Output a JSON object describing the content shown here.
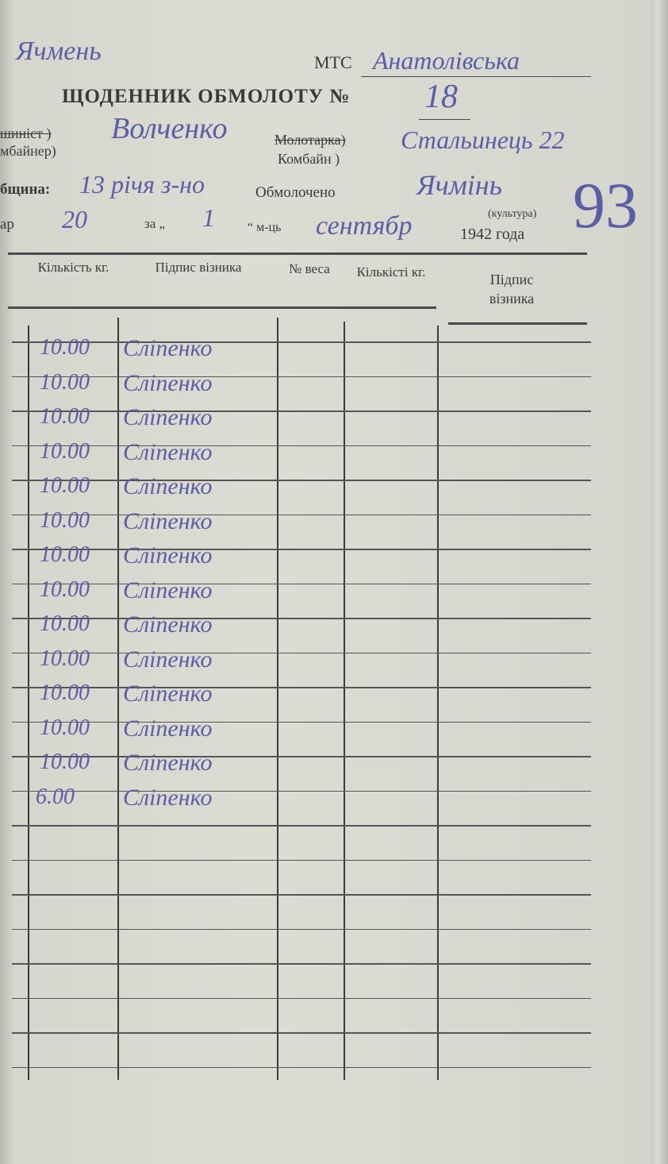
{
  "header": {
    "corner_note": "Ячмень",
    "mts_label": "МТС",
    "mts_value": "Анатолівська",
    "title": "ЩОДЕННИК ОБМОЛОТУ №",
    "number": "18",
    "operator_label_1": "шиніст )",
    "operator_label_2": "мбайнер)",
    "operator_value": "Волченко",
    "machine_label_1": "Молотарка)",
    "machine_label_2": "Комбайн )",
    "machine_value": "Стальинець 22",
    "community_label": "бщина:",
    "community_value": "13 річя з-но",
    "threshed_label": "Обмолочено",
    "threshed_value": "Ячмінь",
    "culture_caption": "(культура)",
    "qty_prefix": "ар",
    "qty_value": "20",
    "for_label": "за „",
    "day_value": "1",
    "month_label": "“ м-ць",
    "month_value": "сентябр",
    "year_label": "1942 года",
    "big_number": "93"
  },
  "table": {
    "columns": [
      "Кількість кг.",
      "Підпис візника",
      "№ веса",
      "Кількісті кг.",
      "Підпис візника"
    ],
    "rows": [
      {
        "qty": "10.00",
        "signature": "Сліпенко"
      },
      {
        "qty": "10.00",
        "signature": "Сліпенко"
      },
      {
        "qty": "10.00",
        "signature": "Сліпенко"
      },
      {
        "qty": "10.00",
        "signature": "Сліпенко"
      },
      {
        "qty": "10.00",
        "signature": "Сліпенко"
      },
      {
        "qty": "10.00",
        "signature": "Сліпенко"
      },
      {
        "qty": "10.00",
        "signature": "Сліпенко"
      },
      {
        "qty": "10.00",
        "signature": "Сліпенко"
      },
      {
        "qty": "10.00",
        "signature": "Сліпенко"
      },
      {
        "qty": "10.00",
        "signature": "Сліпенко"
      },
      {
        "qty": "10.00",
        "signature": "Сліпенко"
      },
      {
        "qty": "10.00",
        "signature": "Сліпенко"
      },
      {
        "qty": "10.00",
        "signature": "Сліпенко"
      },
      {
        "qty": "6.00",
        "signature": "Сліпенко"
      }
    ],
    "total_rows": 22
  },
  "colors": {
    "ink": "#5b5da6",
    "print": "#3a3a3a",
    "paper": "#dcdcd3"
  }
}
